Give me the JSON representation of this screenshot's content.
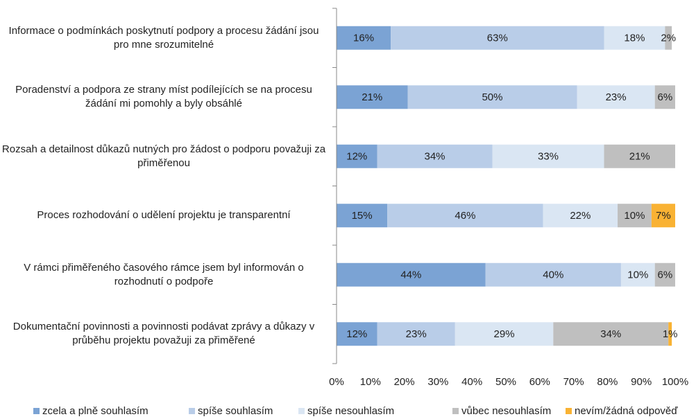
{
  "chart_data": {
    "type": "stacked_bar_horizontal",
    "categories": [
      "Informace o podmínkách poskytnutí podpory a procesu žádání jsou pro mne srozumitelné",
      "Poradenství a podpora ze strany míst podílejících se na procesu žádání mi pomohly a byly obsáhlé",
      "Rozsah a detailnost důkazů nutných pro žádost o podporu považuji za přiměřenou",
      "Proces rozhodování o udělení projektu je transparentní",
      "V rámci přiměřeného časového rámce jsem byl informován o rozhodnutí o podpoře",
      "Dokumentační povinnosti a povinnosti podávat zprávy a důkazy v průběhu projektu považuji za přiměřené"
    ],
    "series": [
      {
        "name": "zcela a plně souhlasím",
        "color": "#7ba3d4",
        "values": [
          16,
          21,
          12,
          15,
          44,
          12
        ],
        "value_labels": [
          "16%",
          "21%",
          "12%",
          "15%",
          "44%",
          "12%"
        ]
      },
      {
        "name": "spíše souhlasím",
        "color": "#b9cde8",
        "values": [
          63,
          50,
          34,
          46,
          40,
          23
        ],
        "value_labels": [
          "63%",
          "50%",
          "34%",
          "46%",
          "40%",
          "23%"
        ]
      },
      {
        "name": "spíše nesouhlasím",
        "color": "#dae6f3",
        "values": [
          18,
          23,
          33,
          22,
          10,
          29
        ],
        "value_labels": [
          "18%",
          "23%",
          "33%",
          "22%",
          "10%",
          "29%"
        ]
      },
      {
        "name": "vůbec nesouhlasím",
        "color": "#bfbfbf",
        "values": [
          2,
          6,
          21,
          10,
          6,
          34
        ],
        "value_labels": [
          "2%",
          "6%",
          "21%",
          "10%",
          "6%",
          "34%"
        ]
      },
      {
        "name": "nevím/žádná odpověď",
        "color": "#f9b233",
        "values": [
          null,
          null,
          null,
          7,
          null,
          1
        ],
        "value_labels": [
          null,
          null,
          null,
          "7%",
          null,
          "1%"
        ]
      }
    ],
    "xlim": [
      0,
      100
    ],
    "xticks": [
      {
        "value": 0,
        "label": "0%"
      },
      {
        "value": 10,
        "label": "10%"
      },
      {
        "value": 20,
        "label": "20%"
      },
      {
        "value": 30,
        "label": "30%"
      },
      {
        "value": 40,
        "label": "40%"
      },
      {
        "value": 50,
        "label": "50%"
      },
      {
        "value": 60,
        "label": "60%"
      },
      {
        "value": 70,
        "label": "70%"
      },
      {
        "value": 80,
        "label": "80%"
      },
      {
        "value": 90,
        "label": "90%"
      },
      {
        "value": 100,
        "label": "100%"
      }
    ],
    "legend": "bottom"
  }
}
